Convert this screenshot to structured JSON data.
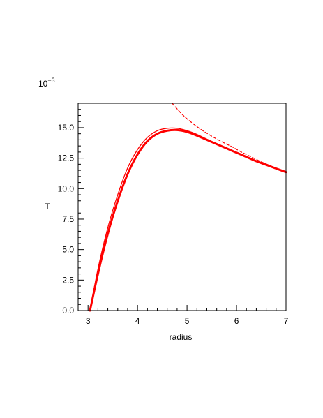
{
  "chart_data": {
    "type": "line",
    "xlabel": "radius",
    "ylabel": "T",
    "y_multiplier_label": "10",
    "y_multiplier_exponent": "−3",
    "xlim": [
      2.8,
      7
    ],
    "ylim": [
      0,
      17
    ],
    "x_ticks": [
      3,
      4,
      5,
      6,
      7
    ],
    "x_tick_labels": [
      "3",
      "4",
      "5",
      "6",
      "7"
    ],
    "y_ticks": [
      0,
      2.5,
      5,
      7.5,
      10,
      12.5,
      15
    ],
    "y_tick_labels": [
      "0.0",
      "2.5",
      "5.0",
      "7.5",
      "10.0",
      "12.5",
      "15.0"
    ],
    "grid": false,
    "legend": "none",
    "color": "#ff0000",
    "series": [
      {
        "style": "thick-solid",
        "x": [
          3.04,
          3.2,
          3.4,
          3.6,
          3.8,
          4.0,
          4.2,
          4.4,
          4.6,
          4.8,
          5.0,
          5.2,
          5.4,
          5.6,
          5.8,
          6.0,
          6.2,
          6.4,
          6.6,
          6.8,
          7.0
        ],
        "y": [
          0.0,
          3.0,
          6.3,
          9.0,
          11.2,
          12.8,
          13.9,
          14.5,
          14.75,
          14.8,
          14.65,
          14.35,
          14.0,
          13.65,
          13.3,
          12.95,
          12.6,
          12.25,
          11.95,
          11.65,
          11.35
        ]
      },
      {
        "style": "thin-solid",
        "x": [
          3.04,
          3.2,
          3.4,
          3.6,
          3.8,
          4.0,
          4.2,
          4.4,
          4.6,
          4.8,
          5.0,
          5.2,
          5.4,
          5.6,
          5.8,
          6.0,
          6.2,
          6.4,
          6.6,
          6.8,
          7.0
        ],
        "y": [
          0.0,
          3.4,
          6.8,
          9.5,
          11.7,
          13.2,
          14.2,
          14.75,
          14.95,
          14.95,
          14.75,
          14.45,
          14.05,
          13.65,
          13.3,
          12.95,
          12.6,
          12.25,
          11.95,
          11.65,
          11.35
        ]
      },
      {
        "style": "dashed",
        "x": [
          4.7,
          4.9,
          5.1,
          5.3,
          5.5,
          5.7,
          5.9,
          6.1,
          6.3,
          6.5,
          6.7,
          7.0
        ],
        "y": [
          17.0,
          16.1,
          15.4,
          14.8,
          14.3,
          13.85,
          13.45,
          13.0,
          12.6,
          12.2,
          11.85,
          11.35
        ]
      }
    ]
  }
}
